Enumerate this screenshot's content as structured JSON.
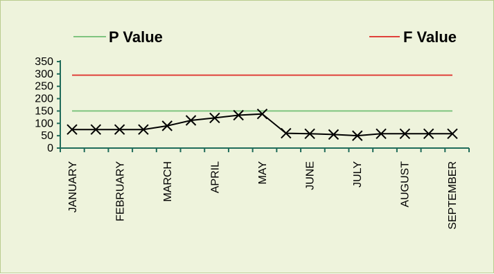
{
  "chart_data": {
    "type": "line",
    "title": "",
    "xlabel": "",
    "ylabel": "",
    "ylim": [
      0,
      350
    ],
    "yticks": [
      0,
      50,
      100,
      150,
      200,
      250,
      300,
      350
    ],
    "xtick_labels": [
      "JANUARY",
      "FEBRUARY",
      "MARCH",
      "APRIL",
      "MAY",
      "JUNE",
      "JULY",
      "AUGUST",
      "SEPTEMBER"
    ],
    "grid": false,
    "legend_position": "top",
    "series": [
      {
        "name": "",
        "color": "#000000",
        "marker": "x",
        "values": [
          75,
          75,
          75,
          75,
          90,
          112,
          122,
          133,
          138,
          60,
          58,
          55,
          50,
          58,
          58,
          58,
          58
        ]
      },
      {
        "name": "P Value",
        "color": "#7fc47f",
        "values": [
          150,
          150
        ]
      },
      {
        "name": "F Value",
        "color": "#e0403a",
        "values": [
          295,
          295
        ]
      }
    ]
  }
}
